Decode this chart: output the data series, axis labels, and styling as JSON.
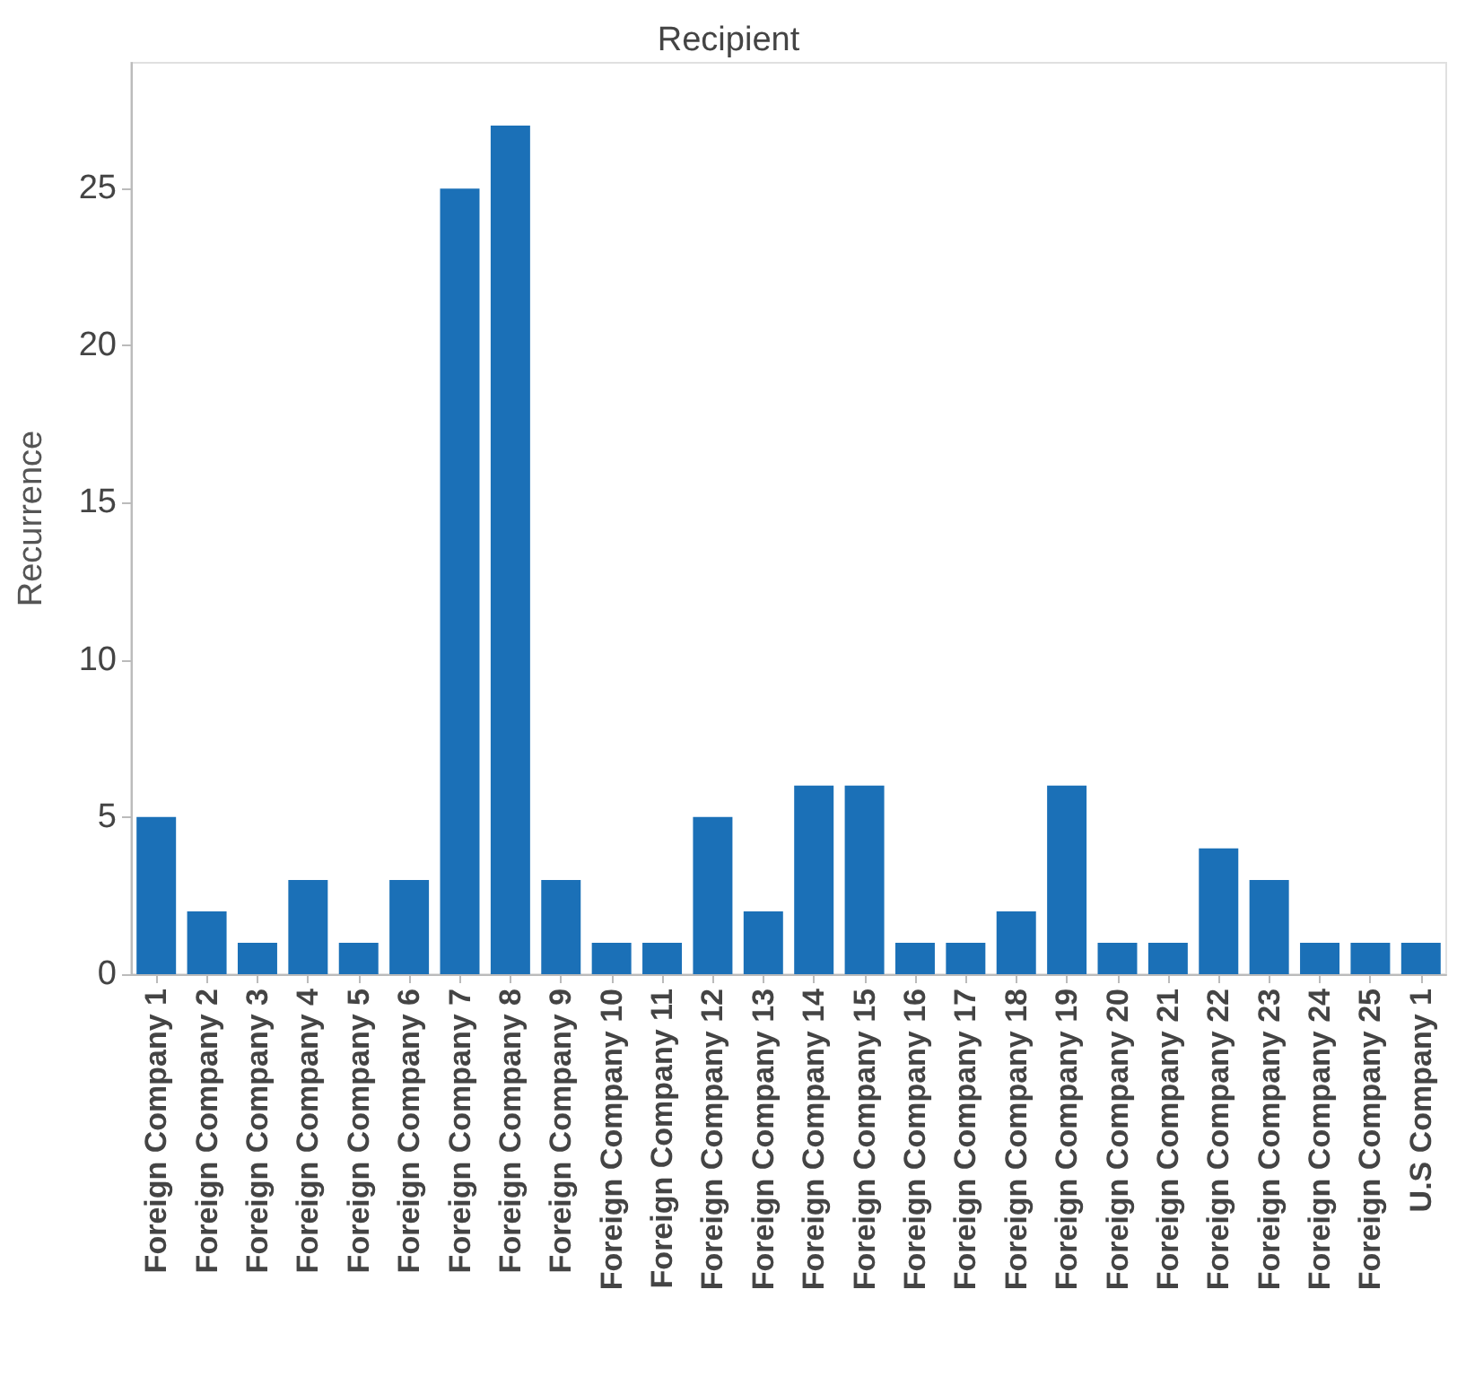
{
  "chart_data": {
    "type": "bar",
    "title": "Recipient",
    "ylabel": "Recurrence",
    "categories": [
      "Foreign Company 1",
      "Foreign Company 2",
      "Foreign Company 3",
      "Foreign Company 4",
      "Foreign Company 5",
      "Foreign Company 6",
      "Foreign Company 7",
      "Foreign Company 8",
      "Foreign Company 9",
      "Foreign Company 10",
      "Foreign Company 11",
      "Foreign Company 12",
      "Foreign Company 13",
      "Foreign Company 14",
      "Foreign Company 15",
      "Foreign Company 16",
      "Foreign Company 17",
      "Foreign Company 18",
      "Foreign Company 19",
      "Foreign Company 20",
      "Foreign Company 21",
      "Foreign Company 22",
      "Foreign Company 23",
      "Foreign Company 24",
      "Foreign Company 25",
      "U.S Company 1"
    ],
    "values": [
      5,
      2,
      1,
      3,
      1,
      3,
      25,
      27,
      3,
      1,
      1,
      5,
      2,
      6,
      6,
      1,
      1,
      2,
      6,
      1,
      1,
      4,
      3,
      1,
      1,
      1
    ],
    "color": "#1b70b7",
    "ylim": [
      0,
      29
    ],
    "yticks": [
      0,
      5,
      10,
      15,
      20,
      25
    ]
  }
}
